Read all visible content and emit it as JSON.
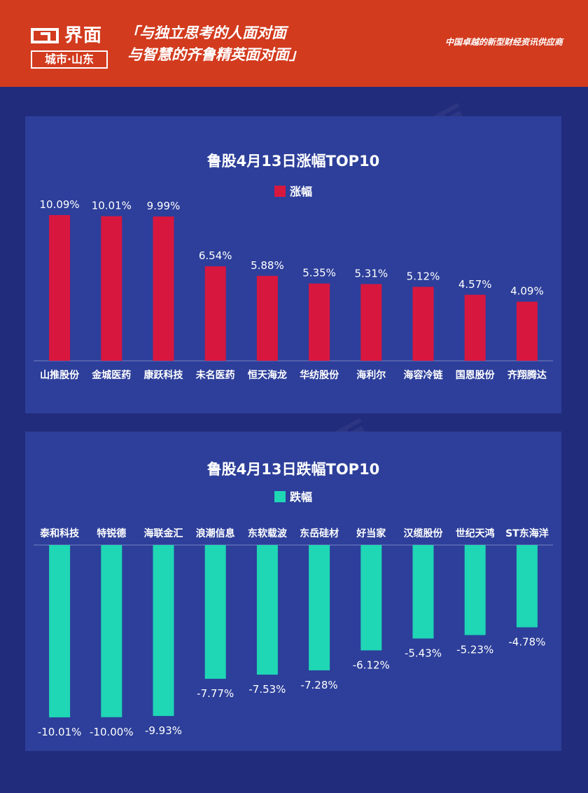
{
  "header": {
    "logo_main": "界面",
    "logo_sub": "城市·山东",
    "slogan_line1": "「与独立思考的人面对面",
    "slogan_line2": "与智慧的齐鲁精英面对面」",
    "tagline": "中国卓越的新型财经资讯供应商"
  },
  "colors": {
    "header_bg": "#d23b1e",
    "page_bg": "#222c7c",
    "panel_bg": "#2d3f9a",
    "gain_bar": "#d8173f",
    "loss_bar": "#1fd6b5"
  },
  "chart_data": [
    {
      "type": "bar",
      "title": "鲁股4月13日涨幅TOP10",
      "series": [
        {
          "name": "涨幅",
          "values": [
            10.09,
            10.01,
            9.99,
            6.54,
            5.88,
            5.35,
            5.31,
            5.12,
            4.57,
            4.09
          ],
          "labels": [
            "10.09%",
            "10.01%",
            "9.99%",
            "6.54%",
            "5.88%",
            "5.35%",
            "5.31%",
            "5.12%",
            "4.57%",
            "4.09%"
          ]
        }
      ],
      "categories": [
        "山推股份",
        "金城医药",
        "康跃科技",
        "未名医药",
        "恒天海龙",
        "华纺股份",
        "海利尔",
        "海容冷链",
        "国恩股份",
        "齐翔腾达"
      ],
      "ylim": [
        0,
        10.09
      ],
      "legend": "top-center",
      "grid": false
    },
    {
      "type": "bar",
      "title": "鲁股4月13日跌幅TOP10",
      "series": [
        {
          "name": "跌幅",
          "values": [
            -10.01,
            -10.0,
            -9.93,
            -7.77,
            -7.53,
            -7.28,
            -6.12,
            -5.43,
            -5.23,
            -4.78
          ],
          "labels": [
            "-10.01%",
            "-10.00%",
            "-9.93%",
            "-7.77%",
            "-7.53%",
            "-7.28%",
            "-6.12%",
            "-5.43%",
            "-5.23%",
            "-4.78%"
          ]
        }
      ],
      "categories": [
        "泰和科技",
        "特锐德",
        "海联金汇",
        "浪潮信息",
        "东软载波",
        "东岳硅材",
        "好当家",
        "汉缆股份",
        "世纪天鸿",
        "ST东海洋"
      ],
      "ylim": [
        -10.01,
        0
      ],
      "legend": "top-center",
      "grid": false
    }
  ]
}
